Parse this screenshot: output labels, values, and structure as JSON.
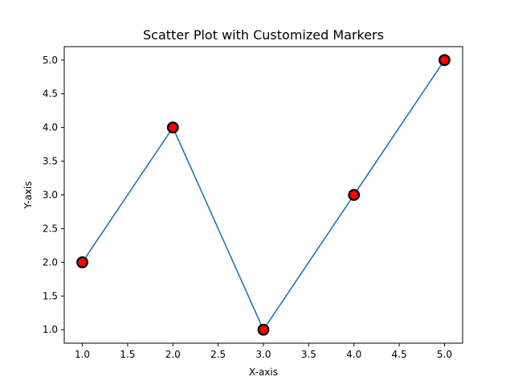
{
  "chart_data": {
    "type": "line",
    "title": "Scatter Plot with Customized Markers",
    "xlabel": "X-axis",
    "ylabel": "Y-axis",
    "x": [
      1,
      2,
      3,
      4,
      5
    ],
    "series": [
      {
        "values": [
          2,
          4,
          1,
          3,
          5
        ]
      }
    ],
    "xlim": [
      0.8,
      5.2
    ],
    "ylim": [
      0.8,
      5.2
    ],
    "xticks": [
      1.0,
      1.5,
      2.0,
      2.5,
      3.0,
      3.5,
      4.0,
      4.5,
      5.0
    ],
    "yticks": [
      1.0,
      1.5,
      2.0,
      2.5,
      3.0,
      3.5,
      4.0,
      4.5,
      5.0
    ],
    "tick_decimals": 1,
    "grid": false,
    "legend": "none",
    "colors": {
      "line": "#1f77b4",
      "marker_fill": "#ff0000",
      "marker_edge": "#000000",
      "axes": "#000000"
    }
  }
}
